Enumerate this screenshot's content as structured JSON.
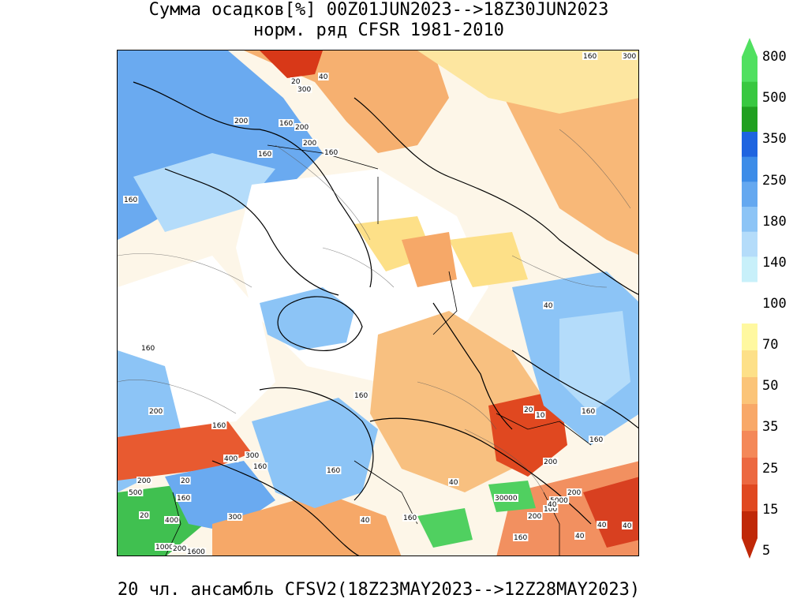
{
  "title": {
    "line1": "Сумма осадков[%] 00Z01JUN2023-->18Z30JUN2023",
    "line2": "норм. ряд CFSR 1981-2010"
  },
  "footer": "20 чл. ансамбль CFSV2(18Z23MAY2023-->12Z28MAY2023)",
  "legend": {
    "levels": [
      "800",
      "500",
      "350",
      "250",
      "180",
      "140",
      "100",
      "70",
      "50",
      "35",
      "25",
      "15",
      "5"
    ],
    "wet_colors": [
      "#50e060",
      "#38c840",
      "#20a020",
      "#1e64e0",
      "#3c8ce8",
      "#64a8f0",
      "#8cc4f6",
      "#b4dcfa",
      "#c8f0fa"
    ],
    "dry_colors": [
      "#fff8a0",
      "#fde088",
      "#fbc478",
      "#f8a868",
      "#f48858",
      "#ec6840",
      "#e04820",
      "#c02808"
    ]
  },
  "map": {
    "contour_labels": [
      "160",
      "300",
      "20",
      "40",
      "300",
      "200",
      "160",
      "200",
      "200",
      "160",
      "160",
      "160",
      "160",
      "200",
      "160",
      "160",
      "10",
      "20",
      "160",
      "160",
      "40",
      "200",
      "40",
      "400",
      "300",
      "160",
      "160",
      "200",
      "20",
      "500",
      "160",
      "20",
      "400",
      "300",
      "40",
      "160",
      "30000",
      "5000",
      "100",
      "40",
      "200",
      "40",
      "40",
      "1000",
      "200",
      "1600",
      "160",
      "200",
      "40"
    ]
  }
}
